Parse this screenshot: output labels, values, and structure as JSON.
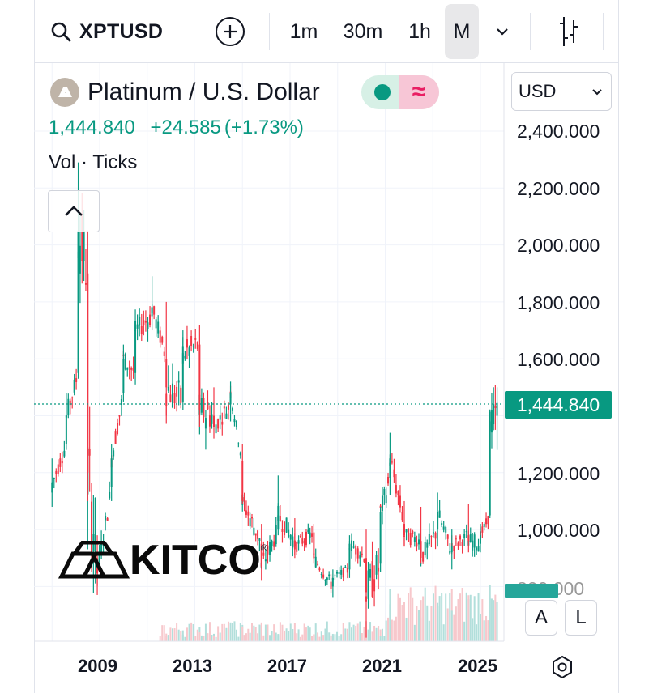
{
  "toolbar": {
    "symbol": "XPTUSD",
    "timeframes": [
      "1m",
      "30m",
      "1h",
      "M"
    ],
    "active_timeframe": "M",
    "more_caret": "⌄"
  },
  "legend": {
    "title": "Platinum / U.S. Dollar",
    "last": "1,444.840",
    "change": "+24.585",
    "change_pct": "(+1.73%)",
    "volume_label": "Vol · Ticks",
    "pill_wave": "≈"
  },
  "currency_select": {
    "value": "USD"
  },
  "price_axis": {
    "ticks": [
      "2,400.000",
      "2,200.000",
      "2,000.000",
      "1,800.000",
      "1,600.000",
      "1,200.000",
      "1,000.000",
      "800.000"
    ],
    "last_price_tag": "1,444.840"
  },
  "time_axis": {
    "ticks": [
      "2009",
      "2013",
      "2017",
      "2021",
      "2025"
    ]
  },
  "buttons": {
    "auto": "A",
    "log": "L"
  },
  "watermark": {
    "text": "KITCO",
    "reg": "®"
  },
  "colors": {
    "up": "#089981",
    "down": "#f23645",
    "accent": "#089981",
    "wave": "#e91e63"
  },
  "chart_data": {
    "type": "candlestick",
    "title": "Platinum / U.S. Dollar",
    "interval": "1M",
    "ylim": [
      700,
      2500
    ],
    "last_price": 1444.84,
    "x_ticks": [
      "2009",
      "2013",
      "2017",
      "2021",
      "2025"
    ],
    "y_ticks": [
      2400,
      2200,
      2000,
      1800,
      1600,
      1200,
      1000,
      800
    ],
    "yearly_points": [
      {
        "t": 2007.0,
        "o": 1130,
        "h": 1250,
        "l": 1080,
        "c": 1160
      },
      {
        "t": 2007.6,
        "o": 1300,
        "h": 1480,
        "l": 1280,
        "c": 1400
      },
      {
        "t": 2008.1,
        "o": 1550,
        "h": 2290,
        "l": 1530,
        "c": 2050
      },
      {
        "t": 2008.5,
        "o": 1900,
        "h": 2050,
        "l": 1100,
        "c": 1200
      },
      {
        "t": 2008.9,
        "o": 900,
        "h": 980,
        "l": 770,
        "c": 850
      },
      {
        "t": 2009.5,
        "o": 1150,
        "h": 1300,
        "l": 1100,
        "c": 1250
      },
      {
        "t": 2010.0,
        "o": 1480,
        "h": 1650,
        "l": 1450,
        "c": 1600
      },
      {
        "t": 2010.5,
        "o": 1550,
        "h": 1720,
        "l": 1510,
        "c": 1700
      },
      {
        "t": 2011.2,
        "o": 1750,
        "h": 1890,
        "l": 1700,
        "c": 1780
      },
      {
        "t": 2011.8,
        "o": 1600,
        "h": 1800,
        "l": 1400,
        "c": 1500
      },
      {
        "t": 2012.5,
        "o": 1450,
        "h": 1700,
        "l": 1420,
        "c": 1620
      },
      {
        "t": 2013.2,
        "o": 1650,
        "h": 1720,
        "l": 1360,
        "c": 1420
      },
      {
        "t": 2013.8,
        "o": 1400,
        "h": 1500,
        "l": 1320,
        "c": 1360
      },
      {
        "t": 2014.5,
        "o": 1440,
        "h": 1520,
        "l": 1380,
        "c": 1480
      },
      {
        "t": 2015.0,
        "o": 1240,
        "h": 1300,
        "l": 1090,
        "c": 1100
      },
      {
        "t": 2015.8,
        "o": 950,
        "h": 1020,
        "l": 820,
        "c": 870
      },
      {
        "t": 2016.5,
        "o": 1000,
        "h": 1190,
        "l": 980,
        "c": 1050
      },
      {
        "t": 2017.2,
        "o": 960,
        "h": 1040,
        "l": 900,
        "c": 940
      },
      {
        "t": 2018.0,
        "o": 990,
        "h": 1020,
        "l": 880,
        "c": 900
      },
      {
        "t": 2018.8,
        "o": 800,
        "h": 860,
        "l": 760,
        "c": 830
      },
      {
        "t": 2019.5,
        "o": 860,
        "h": 980,
        "l": 830,
        "c": 950
      },
      {
        "t": 2020.2,
        "o": 900,
        "h": 1000,
        "l": 600,
        "c": 780
      },
      {
        "t": 2020.8,
        "o": 880,
        "h": 1080,
        "l": 850,
        "c": 1060
      },
      {
        "t": 2021.2,
        "o": 1180,
        "h": 1340,
        "l": 1120,
        "c": 1250
      },
      {
        "t": 2021.8,
        "o": 1020,
        "h": 1100,
        "l": 940,
        "c": 980
      },
      {
        "t": 2022.5,
        "o": 960,
        "h": 1080,
        "l": 880,
        "c": 900
      },
      {
        "t": 2023.2,
        "o": 1000,
        "h": 1130,
        "l": 940,
        "c": 1060
      },
      {
        "t": 2023.8,
        "o": 920,
        "h": 1000,
        "l": 860,
        "c": 940
      },
      {
        "t": 2024.5,
        "o": 980,
        "h": 1090,
        "l": 920,
        "c": 960
      },
      {
        "t": 2025.0,
        "o": 950,
        "h": 1020,
        "l": 920,
        "c": 980
      },
      {
        "t": 2025.4,
        "o": 1050,
        "h": 1420,
        "l": 1040,
        "c": 1380
      },
      {
        "t": 2025.7,
        "o": 1400,
        "h": 1500,
        "l": 1280,
        "c": 1444.84
      }
    ]
  }
}
